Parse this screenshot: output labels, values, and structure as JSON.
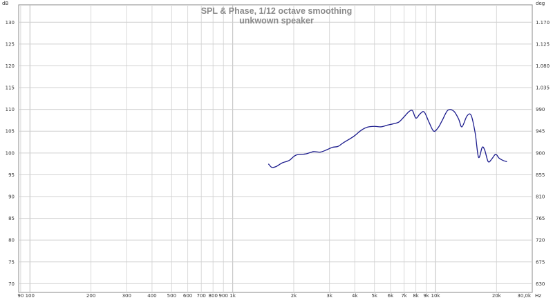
{
  "chart_data": {
    "type": "line",
    "title": "SPL & Phase, 1/12 octave smoothing",
    "subtitle": "unkwown speaker",
    "ylabel": "dB",
    "y2label": "deg",
    "x_unit": "Hz",
    "xscale": "log",
    "xlim": [
      88,
      30000
    ],
    "ylim": [
      68,
      134
    ],
    "y2lim": [
      612,
      1206
    ],
    "grid": true,
    "y_ticks": [
      {
        "value": 70,
        "label": "70"
      },
      {
        "value": 75,
        "label": "75"
      },
      {
        "value": 80,
        "label": "80"
      },
      {
        "value": 85,
        "label": "85"
      },
      {
        "value": 90,
        "label": "90"
      },
      {
        "value": 95,
        "label": "95"
      },
      {
        "value": 100,
        "label": "100"
      },
      {
        "value": 105,
        "label": "105"
      },
      {
        "value": 110,
        "label": "110"
      },
      {
        "value": 115,
        "label": "115"
      },
      {
        "value": 120,
        "label": "120"
      },
      {
        "value": 125,
        "label": "125"
      },
      {
        "value": 130,
        "label": "130"
      }
    ],
    "y2_ticks": [
      {
        "value": 630,
        "label": "630"
      },
      {
        "value": 675,
        "label": "675"
      },
      {
        "value": 720,
        "label": "720"
      },
      {
        "value": 765,
        "label": "765"
      },
      {
        "value": 810,
        "label": "810"
      },
      {
        "value": 855,
        "label": "855"
      },
      {
        "value": 900,
        "label": "900"
      },
      {
        "value": 945,
        "label": "945"
      },
      {
        "value": 990,
        "label": "990"
      },
      {
        "value": 1035,
        "label": "1.035"
      },
      {
        "value": 1080,
        "label": "1.080"
      },
      {
        "value": 1125,
        "label": "1.125"
      },
      {
        "value": 1170,
        "label": "1.170"
      }
    ],
    "x_ticks": [
      {
        "value": 90,
        "label": "90"
      },
      {
        "value": 100,
        "label": "100"
      },
      {
        "value": 200,
        "label": "200"
      },
      {
        "value": 300,
        "label": "300"
      },
      {
        "value": 400,
        "label": "400"
      },
      {
        "value": 500,
        "label": "500"
      },
      {
        "value": 600,
        "label": "600"
      },
      {
        "value": 700,
        "label": "700"
      },
      {
        "value": 800,
        "label": "800"
      },
      {
        "value": 900,
        "label": "900"
      },
      {
        "value": 1000,
        "label": "1k"
      },
      {
        "value": 2000,
        "label": "2k"
      },
      {
        "value": 3000,
        "label": "3k"
      },
      {
        "value": 4000,
        "label": "4k"
      },
      {
        "value": 5000,
        "label": "5k"
      },
      {
        "value": 6000,
        "label": "6k"
      },
      {
        "value": 7000,
        "label": "7k"
      },
      {
        "value": 8000,
        "label": "8k"
      },
      {
        "value": 9000,
        "label": "9k"
      },
      {
        "value": 10000,
        "label": "10k"
      },
      {
        "value": 20000,
        "label": "20k"
      },
      {
        "value": 30000,
        "label": "30,0k"
      }
    ],
    "series": [
      {
        "color": "#1a1a8c",
        "x": [
          1500,
          1560,
          1640,
          1750,
          1900,
          2050,
          2300,
          2500,
          2700,
          2900,
          3100,
          3300,
          3500,
          3800,
          4000,
          4300,
          4600,
          5000,
          5400,
          5800,
          6200,
          6600,
          7000,
          7400,
          7700,
          8000,
          8400,
          8800,
          9300,
          9800,
          10300,
          10800,
          11500,
          12300,
          13000,
          13500,
          14300,
          15000,
          15700,
          16300,
          17000,
          17500,
          18200,
          19000,
          19800,
          20600,
          21500,
          22500
        ],
        "y": [
          97.5,
          96.7,
          96.9,
          97.7,
          98.3,
          99.5,
          99.8,
          100.3,
          100.2,
          100.7,
          101.3,
          101.5,
          102.3,
          103.3,
          104.0,
          105.2,
          105.9,
          106.1,
          106.0,
          106.4,
          106.7,
          107.1,
          108.3,
          109.5,
          109.7,
          108.0,
          109.0,
          109.4,
          107.0,
          105.0,
          105.8,
          107.5,
          109.8,
          109.6,
          107.8,
          106.0,
          108.5,
          108.6,
          104.5,
          99.0,
          101.3,
          100.6,
          98.0,
          98.7,
          99.7,
          98.8,
          98.3,
          98.0
        ]
      }
    ]
  }
}
